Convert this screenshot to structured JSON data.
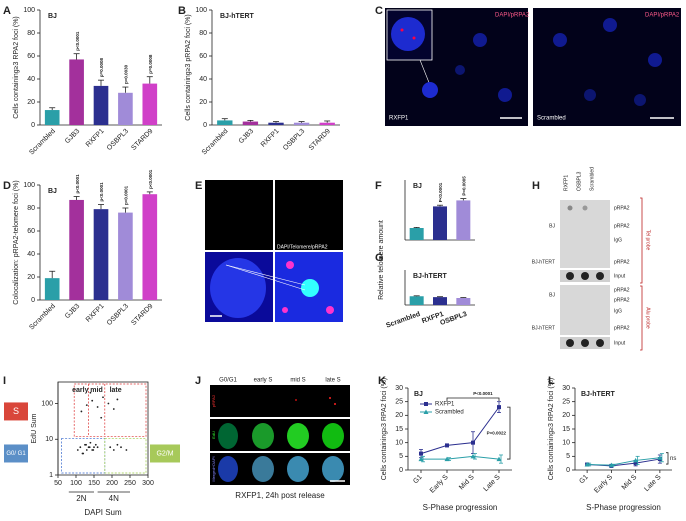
{
  "chart_data": [
    {
      "panel": "A",
      "type": "bar",
      "annotation": "BJ",
      "y_label": "Cells containing≥3 RPA2 foci (%)",
      "categories": [
        "Scrambled",
        "GJB3",
        "RXFP1",
        "OSBPL3",
        "STARD9"
      ],
      "values": [
        13,
        57,
        34,
        28,
        36
      ],
      "errors": [
        2,
        5,
        5,
        5,
        6
      ],
      "colors": [
        "#2a9fa8",
        "#a3309c",
        "#2b2f8f",
        "#a08bd8",
        "#d040c8"
      ],
      "p_labels": [
        null,
        "p<0.0001",
        "p=0.0008",
        "p=0.0030",
        "p=0.0008"
      ],
      "ylim": [
        0,
        100
      ],
      "yticks": [
        0,
        20,
        40,
        60,
        80,
        100
      ]
    },
    {
      "panel": "B",
      "type": "bar",
      "annotation": "BJ-hTERT",
      "y_label": "Cells containing≥3 pRPA2 foci (%)",
      "categories": [
        "Scrambled",
        "GJB3",
        "RXFP1",
        "OSBPL3",
        "STARD9"
      ],
      "values": [
        4,
        3,
        2,
        2,
        2
      ],
      "errors": [
        1.5,
        1,
        1,
        1,
        1.5
      ],
      "colors": [
        "#2a9fa8",
        "#a3309c",
        "#2b2f8f",
        "#a08bd8",
        "#d040c8"
      ],
      "ylim": [
        0,
        100
      ],
      "yticks": [
        0,
        20,
        40,
        60,
        80,
        100
      ]
    },
    {
      "panel": "D",
      "type": "bar",
      "annotation": "BJ",
      "y_label": "Colocalization: pRPA2-telomere foci (%)",
      "categories": [
        "Scrambled",
        "GJB3",
        "RXFP1",
        "OSBPL3",
        "STARD9"
      ],
      "values": [
        19,
        87,
        79,
        76,
        92
      ],
      "errors": [
        6,
        3,
        4,
        4,
        2
      ],
      "colors": [
        "#2a9fa8",
        "#a3309c",
        "#2b2f8f",
        "#a08bd8",
        "#d040c8"
      ],
      "p_labels": [
        null,
        "p<0.0001",
        "p<0.0001",
        "p<0.0001",
        "p<0.0001"
      ],
      "ylim": [
        0,
        100
      ],
      "yticks": [
        0,
        20,
        40,
        60,
        80,
        100
      ]
    },
    {
      "panel": "F",
      "type": "bar",
      "annotation": "BJ",
      "y_label": "Relative telomere amount",
      "values": [
        1.0,
        2.8,
        3.3
      ],
      "errors": [
        0.05,
        0.1,
        0.15
      ],
      "colors": [
        "#2a9fa8",
        "#2b2f8f",
        "#a08bd8"
      ],
      "p_labels": [
        null,
        "P<0.0001",
        "P=0.0005"
      ],
      "ylim": [
        0,
        5
      ]
    },
    {
      "panel": "G",
      "type": "bar",
      "annotation": "BJ-hTERT",
      "categories": [
        "Scrambled",
        "RXFP1",
        "OSBPL3"
      ],
      "values": [
        1.0,
        0.9,
        0.8
      ],
      "errors": [
        0.05,
        0.05,
        0.05
      ],
      "colors": [
        "#2a9fa8",
        "#2b2f8f",
        "#a08bd8"
      ],
      "ylim": [
        0,
        4
      ]
    },
    {
      "panel": "I",
      "type": "scatter",
      "x_label": "DAPI Sum",
      "y_label": "EdU Sum",
      "log_y": true,
      "gate_labels": [
        "early",
        "mid",
        "late",
        "S",
        "G0/ G1",
        "G2/M"
      ],
      "dna_labels": [
        "2N",
        "4N"
      ],
      "x": [
        105,
        112,
        118,
        125,
        130,
        135,
        140,
        145,
        150,
        155,
        120,
        128,
        138,
        148,
        160,
        115,
        130,
        145,
        160,
        175,
        190,
        205,
        215,
        140,
        170,
        195,
        205,
        215,
        225,
        240
      ],
      "y": [
        5,
        6,
        4,
        7,
        5,
        6,
        8,
        5,
        6,
        7,
        4,
        7,
        6,
        5,
        6,
        60,
        90,
        120,
        80,
        150,
        100,
        70,
        130,
        200,
        40,
        6,
        5,
        7,
        6,
        5
      ],
      "color": "#222222",
      "xlim": [
        50,
        300
      ],
      "xticks": [
        50,
        100,
        150,
        200,
        250,
        300
      ],
      "ylim": [
        1,
        400
      ],
      "yticks": [
        1,
        10,
        100
      ]
    },
    {
      "panel": "K",
      "type": "line",
      "annotation": "BJ",
      "y_label": "Cells containing≥3 RPA2 foci (%)",
      "x_label": "S-Phase progression",
      "categories": [
        "G1",
        "Early S",
        "Mid S",
        "Late S"
      ],
      "series": [
        {
          "name": "RXFP1",
          "color": "#2b2f8f",
          "marker": "square",
          "values": [
            6,
            9,
            10,
            23
          ],
          "errors": [
            1.5,
            0.5,
            4,
            2
          ]
        },
        {
          "name": "Scrambled",
          "color": "#2a9fa8",
          "marker": "triangle",
          "values": [
            4,
            4,
            5,
            4
          ],
          "errors": [
            1,
            0.5,
            1,
            1.5
          ]
        }
      ],
      "annotations": [
        "P<0.0001",
        "P=0.0022"
      ],
      "legend": "top-left",
      "ylim": [
        0,
        30
      ],
      "yticks": [
        0,
        5,
        10,
        15,
        20,
        25,
        30
      ]
    },
    {
      "panel": "L",
      "type": "line",
      "annotation": "BJ-hTERT",
      "y_label": "Cells containing≥3 RPA2 foci (%)",
      "x_label": "S-Phase progression",
      "categories": [
        "G1",
        "Early S",
        "Mid S",
        "Late S"
      ],
      "series": [
        {
          "color": "#2b2f8f",
          "marker": "square",
          "values": [
            2,
            1.5,
            2.5,
            4
          ],
          "errors": [
            0.5,
            0.3,
            1,
            1.5
          ]
        },
        {
          "color": "#2a9fa8",
          "marker": "triangle",
          "values": [
            2,
            1.8,
            3.5,
            4.5
          ],
          "errors": [
            0.5,
            0.3,
            1.5,
            1.5
          ]
        }
      ],
      "annotations": [
        "ns"
      ],
      "ylim": [
        0,
        30
      ],
      "yticks": [
        0,
        5,
        10,
        15,
        20,
        25,
        30
      ]
    }
  ],
  "images": {
    "C": {
      "panel": "C",
      "labels": [
        "DAPI/pRPA2",
        "DAPI/pRPA2",
        "RXFP1",
        "Scrambled"
      ]
    },
    "E": {
      "panel": "E",
      "labels": [
        "DAPI/Telomere/pRPA2"
      ]
    },
    "H": {
      "panel": "H",
      "columns": [
        "RXFP1",
        "OSBPL3",
        "Scrambled"
      ],
      "rows": [
        "BJ",
        "BJ-hTERT",
        "BJ",
        "BJ-hTERT"
      ],
      "bands": [
        "pRPA2",
        "pRPA2",
        "IgG",
        "pRPA2",
        "Input",
        "pRPA2",
        "pRPA2",
        "IgG",
        "pRPA2",
        "Input"
      ],
      "probes": [
        "Tel probe",
        "Alu probe"
      ]
    },
    "J": {
      "panel": "J",
      "columns": [
        "G0/G1",
        "early S",
        "mid S",
        "late S"
      ],
      "rows": [
        "pRPA2",
        "EdU",
        "Merged+DAPI"
      ],
      "caption": "RXFP1, 24h post release"
    }
  }
}
